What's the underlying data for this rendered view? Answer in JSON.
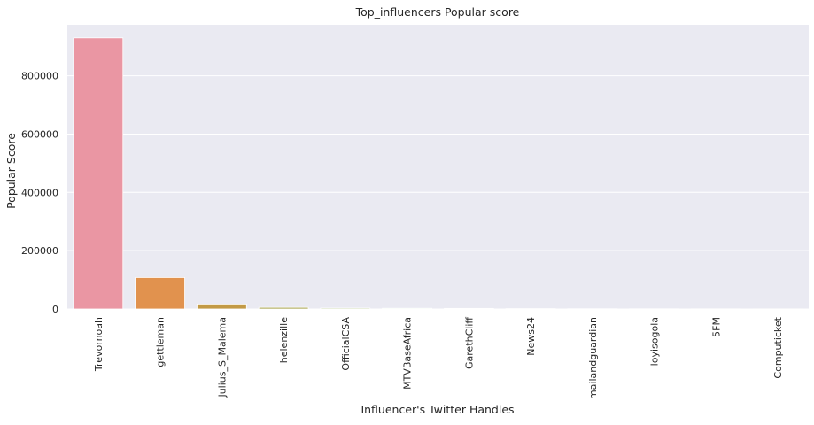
{
  "chart_data": {
    "type": "bar",
    "title": "Top_influencers Popular score",
    "xlabel": "Influencer's Twitter Handles",
    "ylabel": "Popular Score",
    "categories": [
      "Trevornoah",
      "gettleman",
      "Julius_S_Malema",
      "helenzille",
      "OfficialCSA",
      "MTVBaseAfrica",
      "GarethCliff",
      "News24",
      "mailandguardian",
      "loyisogola",
      "5FM",
      "Computicket"
    ],
    "values": [
      930000,
      108000,
      17000,
      5500,
      3000,
      2500,
      2000,
      1200,
      900,
      700,
      500,
      400
    ],
    "colors": [
      "#EA96A3",
      "#E1924E",
      "#C39A45",
      "#A6A24A",
      "#8AA84B",
      "#4FB054",
      "#52AE8C",
      "#55ABA5",
      "#58A9BF",
      "#5EA4E0",
      "#A4A1F0",
      "#E08FEB"
    ],
    "yticks": [
      0,
      200000,
      400000,
      600000,
      800000
    ],
    "ytick_labels": [
      "0",
      "200000",
      "400000",
      "600000",
      "800000"
    ],
    "ylim": [
      0,
      975000
    ],
    "grid": true,
    "background": "#EAEAF2"
  }
}
